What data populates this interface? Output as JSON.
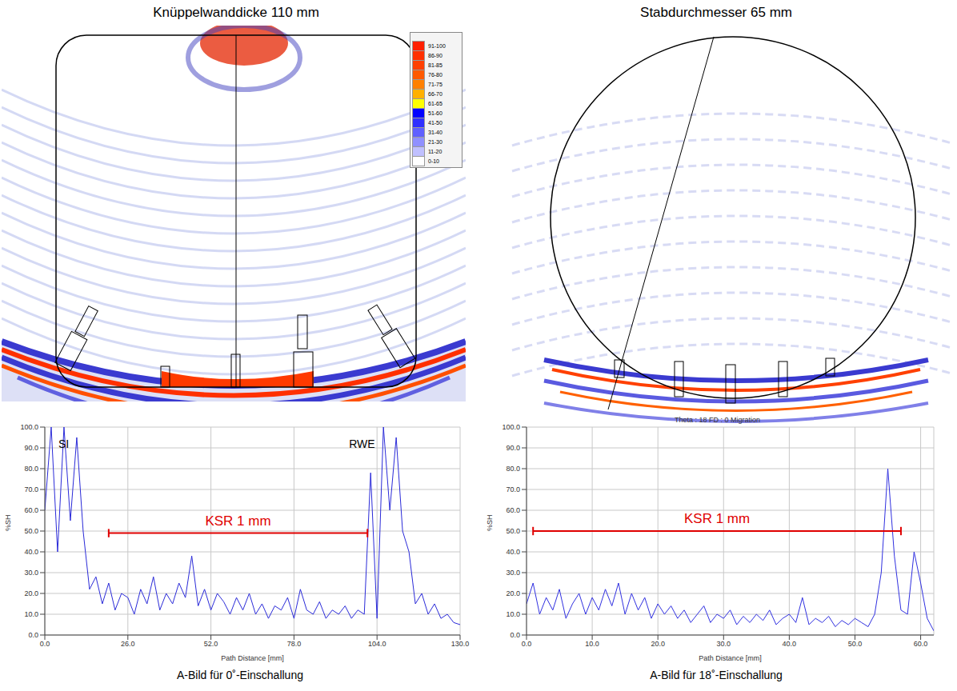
{
  "figure": {
    "image_titles": [
      "Knüppelwanddicke 110 mm",
      "Stabdurchmesser 65 mm"
    ],
    "colorbar": [
      {
        "label": "91-100",
        "color": "#ff2000"
      },
      {
        "label": "86-90",
        "color": "#ff3000"
      },
      {
        "label": "81-85",
        "color": "#ff4000"
      },
      {
        "label": "76-80",
        "color": "#ff5a00"
      },
      {
        "label": "71-75",
        "color": "#ff8000"
      },
      {
        "label": "66-70",
        "color": "#ffb000"
      },
      {
        "label": "61-65",
        "color": "#ffff00"
      },
      {
        "label": "51-60",
        "color": "#0000ff"
      },
      {
        "label": "41-50",
        "color": "#3030ff"
      },
      {
        "label": "31-40",
        "color": "#6060ff"
      },
      {
        "label": "21-30",
        "color": "#9090ff"
      },
      {
        "label": "11-20",
        "color": "#c0c0ff"
      },
      {
        "label": "0-10",
        "color": "#ffffff"
      }
    ]
  },
  "chart_data": [
    {
      "type": "line",
      "caption": "A-Bild für 0˚-Einschallung",
      "xlabel": "Path Distance [mm]",
      "ylabel": "%SH",
      "color": "#2a2ad8",
      "grid": true,
      "x": [
        0,
        2,
        4,
        6,
        8,
        10,
        12,
        14,
        16,
        18,
        20,
        22,
        24,
        26,
        28,
        30,
        32,
        34,
        36,
        38,
        40,
        42,
        44,
        46,
        48,
        50,
        52,
        54,
        56,
        58,
        60,
        62,
        64,
        66,
        68,
        70,
        72,
        74,
        76,
        78,
        80,
        82,
        84,
        86,
        88,
        90,
        92,
        94,
        96,
        98,
        100,
        102,
        104,
        106,
        108,
        110,
        112,
        114,
        116,
        118,
        120,
        122,
        124,
        126,
        128,
        130
      ],
      "values": [
        60,
        100,
        40,
        100,
        55,
        95,
        50,
        22,
        28,
        15,
        25,
        12,
        20,
        18,
        10,
        22,
        15,
        28,
        12,
        20,
        15,
        25,
        18,
        38,
        14,
        22,
        12,
        20,
        16,
        10,
        18,
        12,
        20,
        10,
        15,
        8,
        14,
        12,
        18,
        8,
        22,
        12,
        10,
        16,
        8,
        12,
        10,
        14,
        8,
        12,
        10,
        78,
        8,
        100,
        60,
        95,
        50,
        40,
        15,
        20,
        10,
        15,
        8,
        10,
        6,
        5
      ],
      "xlim": [
        0,
        130
      ],
      "xticks": [
        {
          "value": 0,
          "label": "0.0"
        },
        {
          "value": 26,
          "label": "26.0"
        },
        {
          "value": 52,
          "label": "52.0"
        },
        {
          "value": 78,
          "label": "78.0"
        },
        {
          "value": 104,
          "label": "104.0"
        },
        {
          "value": 130,
          "label": "130.0"
        }
      ],
      "ylim": [
        0,
        100
      ],
      "yticks": [
        {
          "value": 0,
          "label": "0.0"
        },
        {
          "value": 10,
          "label": "10.0"
        },
        {
          "value": 20,
          "label": "20.0"
        },
        {
          "value": 30,
          "label": "30.0"
        },
        {
          "value": 40,
          "label": "40.0"
        },
        {
          "value": 50,
          "label": "50.0"
        },
        {
          "value": 60,
          "label": "60.0"
        },
        {
          "value": 70,
          "label": "70.0"
        },
        {
          "value": 80,
          "label": "80.0"
        },
        {
          "value": 90,
          "label": "90.0"
        },
        {
          "value": 100,
          "label": "100.0"
        }
      ],
      "annotations": [
        {
          "text": "SI",
          "x": 3,
          "y": 92
        },
        {
          "text": "RWE",
          "x": 94,
          "y": 92
        }
      ],
      "range_marker": {
        "text": "KSR 1 mm",
        "x": [
          20,
          101
        ],
        "y": 49,
        "color": "#e00000"
      }
    },
    {
      "type": "line",
      "caption": "A-Bild für 18˚-Einschallung",
      "title": "Theta : 18 FD : 0 Migration",
      "xlabel": "Path Distance [mm]",
      "ylabel": "%SH",
      "color": "#3030e0",
      "grid": true,
      "x": [
        0,
        1,
        2,
        3,
        4,
        5,
        6,
        7,
        8,
        9,
        10,
        11,
        12,
        13,
        14,
        15,
        16,
        17,
        18,
        19,
        20,
        21,
        22,
        23,
        24,
        25,
        26,
        27,
        28,
        29,
        30,
        31,
        32,
        33,
        34,
        35,
        36,
        37,
        38,
        39,
        40,
        41,
        42,
        43,
        44,
        45,
        46,
        47,
        48,
        49,
        50,
        51,
        52,
        53,
        54,
        55,
        56,
        57,
        58,
        59,
        60,
        61,
        62
      ],
      "values": [
        15,
        25,
        10,
        18,
        12,
        22,
        8,
        15,
        20,
        10,
        18,
        12,
        22,
        14,
        25,
        10,
        20,
        12,
        18,
        8,
        15,
        10,
        14,
        8,
        12,
        6,
        10,
        14,
        6,
        10,
        8,
        12,
        5,
        9,
        6,
        10,
        7,
        12,
        5,
        8,
        10,
        6,
        18,
        5,
        8,
        6,
        9,
        4,
        7,
        5,
        8,
        6,
        4,
        10,
        30,
        80,
        38,
        12,
        10,
        40,
        25,
        8,
        2
      ],
      "xlim": [
        0,
        62
      ],
      "xticks": [
        {
          "value": 0,
          "label": "0.0"
        },
        {
          "value": 10,
          "label": "10.0"
        },
        {
          "value": 20,
          "label": "20.0"
        },
        {
          "value": 30,
          "label": "30.0"
        },
        {
          "value": 40,
          "label": "40.0"
        },
        {
          "value": 50,
          "label": "50.0"
        },
        {
          "value": 60,
          "label": "60.0"
        }
      ],
      "ylim": [
        0,
        100
      ],
      "yticks": [
        {
          "value": 0,
          "label": "0.0"
        },
        {
          "value": 10,
          "label": "10.0"
        },
        {
          "value": 20,
          "label": "20.0"
        },
        {
          "value": 30,
          "label": "30.0"
        },
        {
          "value": 40,
          "label": "40.0"
        },
        {
          "value": 50,
          "label": "50.0"
        },
        {
          "value": 60,
          "label": "60.0"
        },
        {
          "value": 70,
          "label": "70.0"
        },
        {
          "value": 80,
          "label": "80.0"
        },
        {
          "value": 90,
          "label": "90.0"
        },
        {
          "value": 100,
          "label": "100.0"
        }
      ],
      "range_marker": {
        "text": "KSR 1 mm",
        "x": [
          1,
          57
        ],
        "y": 50,
        "color": "#e00000"
      }
    }
  ]
}
